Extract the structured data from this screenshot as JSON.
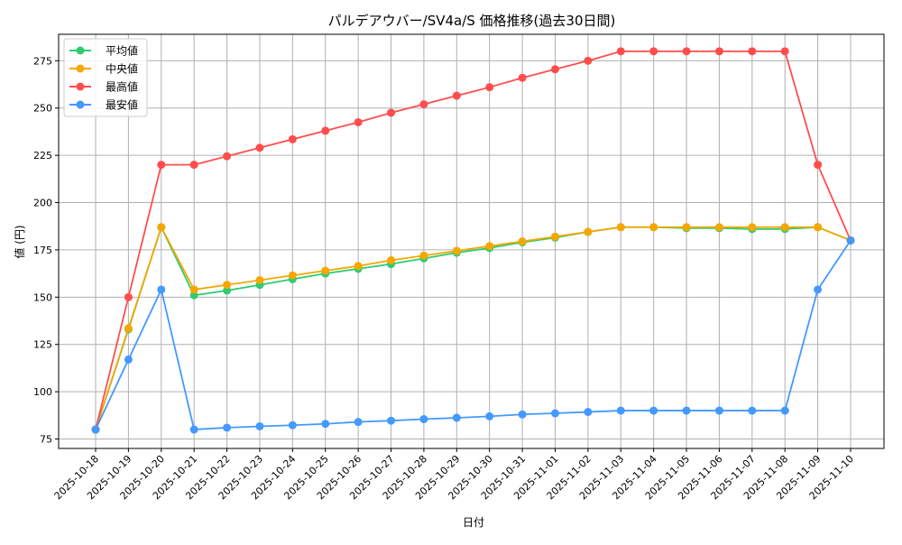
{
  "chart_data": {
    "type": "line",
    "title": "パルデアウバー/SV4a/S 価格推移(過去30日間)",
    "xlabel": "日付",
    "ylabel": "値 (円)",
    "ylim": [
      70,
      289
    ],
    "yticks": [
      75,
      100,
      125,
      150,
      175,
      200,
      225,
      250,
      275
    ],
    "grid": true,
    "legend": "top-left",
    "x": [
      "2025-10-18",
      "2025-10-19",
      "2025-10-20",
      "2025-10-21",
      "2025-10-22",
      "2025-10-23",
      "2025-10-24",
      "2025-10-25",
      "2025-10-26",
      "2025-10-27",
      "2025-10-28",
      "2025-10-29",
      "2025-10-30",
      "2025-10-31",
      "2025-11-01",
      "2025-11-02",
      "2025-11-03",
      "2025-11-04",
      "2025-11-05",
      "2025-11-06",
      "2025-11-07",
      "2025-11-08",
      "2025-11-09",
      "2025-11-10"
    ],
    "series": [
      {
        "name": "平均値",
        "color": "#2ecc71",
        "values": [
          80,
          133,
          187,
          151,
          153.5,
          156.5,
          159.5,
          162.5,
          165,
          167.5,
          170.5,
          173.5,
          176,
          179,
          181.5,
          184.5,
          187,
          187,
          186.5,
          186.5,
          186,
          186,
          187,
          180
        ]
      },
      {
        "name": "中央値",
        "color": "#f5a700",
        "values": [
          80,
          133.5,
          187,
          154,
          156.5,
          159,
          161.5,
          164,
          166.5,
          169.5,
          172,
          174.5,
          177,
          179.5,
          182,
          184.5,
          187,
          187,
          187,
          187,
          187,
          187,
          187,
          180
        ]
      },
      {
        "name": "最高値",
        "color": "#ff4d4d",
        "values": [
          80,
          150,
          220,
          220,
          224.5,
          229,
          233.5,
          238,
          242.5,
          247.5,
          252,
          256.5,
          261,
          266,
          270.5,
          275,
          280,
          280,
          280,
          280,
          280,
          280,
          220,
          180
        ]
      },
      {
        "name": "最安値",
        "color": "#4499ff",
        "values": [
          80,
          117,
          154,
          80,
          81,
          81.7,
          82.3,
          83,
          84,
          84.7,
          85.5,
          86.2,
          87,
          88,
          88.6,
          89.3,
          90,
          90,
          90,
          90,
          90,
          90,
          154,
          180
        ]
      }
    ]
  }
}
